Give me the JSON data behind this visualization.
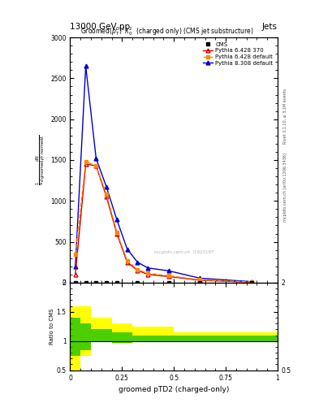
{
  "title_top": "13000 GeV pp",
  "title_right": "Jets",
  "plot_title": "Groomed$(p_T^D)^2\\lambda_0^2$  (charged only) (CMS jet substructure)",
  "xlabel": "groomed pTD2 (charged-only)",
  "right_label1": "Rivet 3.1.10, ≥ 3.1M events",
  "right_label2": "mcplots.cern.ch [arXiv:1306.3436]",
  "pythia6_370_x": [
    0.025,
    0.075,
    0.125,
    0.175,
    0.225,
    0.275,
    0.325,
    0.375,
    0.475,
    0.625,
    0.875
  ],
  "pythia6_370_y": [
    100,
    1450,
    1430,
    1050,
    600,
    250,
    150,
    100,
    75,
    30,
    5
  ],
  "pythia6_def_x": [
    0.025,
    0.075,
    0.125,
    0.175,
    0.225,
    0.275,
    0.325,
    0.375,
    0.475,
    0.625,
    0.875
  ],
  "pythia6_def_y": [
    350,
    1480,
    1430,
    1080,
    620,
    270,
    160,
    115,
    85,
    35,
    8
  ],
  "pythia8_x": [
    0.025,
    0.075,
    0.125,
    0.175,
    0.225,
    0.275,
    0.325,
    0.375,
    0.475,
    0.625,
    0.875
  ],
  "pythia8_y": [
    200,
    2650,
    1520,
    1170,
    770,
    410,
    250,
    180,
    145,
    55,
    12
  ],
  "cms_x": [
    0.025,
    0.075,
    0.125,
    0.175,
    0.225,
    0.325,
    0.475,
    0.625,
    0.875
  ],
  "cms_y": [
    0,
    0,
    0,
    0,
    0,
    0,
    0,
    0,
    0
  ],
  "ratio_x_edges": [
    0.0,
    0.05,
    0.1,
    0.2,
    0.3,
    0.5,
    1.0
  ],
  "ratio_yellow_low": [
    0.5,
    0.75,
    1.0,
    0.95,
    1.0,
    1.0,
    1.0
  ],
  "ratio_yellow_high": [
    1.6,
    1.6,
    1.4,
    1.3,
    1.25,
    1.15,
    1.15
  ],
  "ratio_green_low": [
    0.75,
    0.85,
    1.0,
    0.97,
    1.0,
    1.0,
    1.0
  ],
  "ratio_green_high": [
    1.4,
    1.3,
    1.2,
    1.15,
    1.1,
    1.1,
    1.1
  ],
  "color_cms": "#000000",
  "color_p6_370": "#cc0000",
  "color_p6_def": "#ff8800",
  "color_p8": "#0000cc",
  "color_yellow": "#ffff00",
  "color_green": "#00bb00",
  "ylim_main": [
    0,
    3000
  ],
  "ylim_ratio": [
    0.5,
    2.0
  ],
  "xlim": [
    0.0,
    1.0
  ],
  "watermark": "mcplots.cern.ch  I1920187"
}
